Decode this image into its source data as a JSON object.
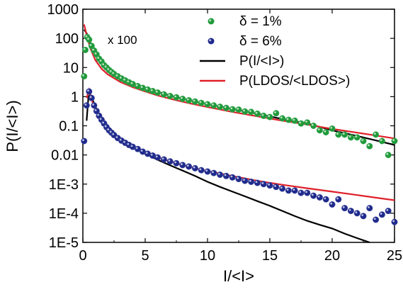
{
  "chart_data": {
    "type": "scatter",
    "xlabel": "I/<I>",
    "ylabel": "P(I/<I>)",
    "xlim": [
      0,
      25
    ],
    "ylim": [
      1e-05,
      1000
    ],
    "yscale": "log",
    "xticks": [
      0,
      5,
      10,
      15,
      20,
      25
    ],
    "xtick_labels": [
      "0",
      "5",
      "10",
      "15",
      "20",
      "25"
    ],
    "yticks": [
      1000,
      100,
      10,
      1,
      0.1,
      0.01,
      0.001,
      0.0001,
      1e-05
    ],
    "ytick_labels": [
      "1000",
      "100",
      "10",
      "1",
      "0.1",
      "0.01",
      "1E-3",
      "1E-4",
      "1E-5"
    ],
    "annotation": "x 100",
    "legend": {
      "placement": "top-right",
      "entries": [
        {
          "label": "δ = 1%",
          "marker": "circle",
          "color": "#1f9a3a"
        },
        {
          "label": "δ = 6%",
          "marker": "circle",
          "color": "#1f2a8c"
        },
        {
          "label": "P(I/<I>)",
          "marker": "line",
          "color": "#000000"
        },
        {
          "label": "P(LDOS/<LDOS>)",
          "marker": "line",
          "color": "#e0202a"
        }
      ]
    },
    "series": [
      {
        "name": "δ = 1%",
        "kind": "scatter",
        "color": "#1f9a3a",
        "points": [
          [
            0.1,
            5
          ],
          [
            0.2,
            40
          ],
          [
            0.35,
            110
          ],
          [
            0.5,
            90
          ],
          [
            0.7,
            55
          ],
          [
            0.9,
            38
          ],
          [
            1.1,
            28
          ],
          [
            1.3,
            20
          ],
          [
            1.5,
            16
          ],
          [
            1.7,
            12
          ],
          [
            1.9,
            10
          ],
          [
            2.1,
            8.2
          ],
          [
            2.3,
            7
          ],
          [
            2.5,
            6
          ],
          [
            2.8,
            5
          ],
          [
            3.1,
            4.2
          ],
          [
            3.4,
            3.6
          ],
          [
            3.7,
            3.1
          ],
          [
            4.0,
            2.7
          ],
          [
            4.4,
            2.3
          ],
          [
            4.8,
            2.0
          ],
          [
            5.2,
            1.75
          ],
          [
            5.6,
            1.55
          ],
          [
            6.0,
            1.38
          ],
          [
            6.5,
            1.2
          ],
          [
            7.0,
            1.05
          ],
          [
            7.5,
            0.95
          ],
          [
            8.0,
            0.84
          ],
          [
            8.5,
            0.75
          ],
          [
            9.0,
            0.68
          ],
          [
            9.5,
            0.61
          ],
          [
            10.0,
            0.55
          ],
          [
            10.5,
            0.5
          ],
          [
            11.0,
            0.45
          ],
          [
            11.5,
            0.41
          ],
          [
            12.0,
            0.37
          ],
          [
            12.5,
            0.36
          ],
          [
            13.0,
            0.31
          ],
          [
            13.5,
            0.3
          ],
          [
            14.0,
            0.26
          ],
          [
            14.5,
            0.22
          ],
          [
            15.0,
            0.2
          ],
          [
            15.5,
            0.27
          ],
          [
            16.0,
            0.18
          ],
          [
            16.5,
            0.16
          ],
          [
            17.0,
            0.15
          ],
          [
            17.5,
            0.12
          ],
          [
            18.0,
            0.13
          ],
          [
            18.5,
            0.1
          ],
          [
            19.0,
            0.07
          ],
          [
            19.5,
            0.06
          ],
          [
            20.0,
            0.08
          ],
          [
            20.5,
            0.05
          ],
          [
            21.0,
            0.05
          ],
          [
            21.5,
            0.04
          ],
          [
            22.0,
            0.04
          ],
          [
            22.5,
            0.03
          ],
          [
            23.0,
            0.02
          ],
          [
            23.5,
            0.05
          ],
          [
            24.0,
            0.03
          ],
          [
            24.5,
            0.01
          ],
          [
            25.0,
            0.03
          ]
        ]
      },
      {
        "name": "δ = 6%",
        "kind": "scatter",
        "color": "#1f2a8c",
        "points": [
          [
            0.1,
            0.03
          ],
          [
            0.3,
            0.5
          ],
          [
            0.5,
            1.5
          ],
          [
            0.7,
            0.9
          ],
          [
            0.9,
            0.5
          ],
          [
            1.1,
            0.32
          ],
          [
            1.3,
            0.22
          ],
          [
            1.5,
            0.16
          ],
          [
            1.7,
            0.12
          ],
          [
            1.9,
            0.09
          ],
          [
            2.1,
            0.07
          ],
          [
            2.3,
            0.058
          ],
          [
            2.5,
            0.048
          ],
          [
            2.8,
            0.038
          ],
          [
            3.1,
            0.031
          ],
          [
            3.4,
            0.026
          ],
          [
            3.7,
            0.022
          ],
          [
            4.0,
            0.019
          ],
          [
            4.4,
            0.016
          ],
          [
            4.8,
            0.013
          ],
          [
            5.2,
            0.011
          ],
          [
            5.6,
            0.0095
          ],
          [
            6.0,
            0.0082
          ],
          [
            6.5,
            0.007
          ],
          [
            7.0,
            0.006
          ],
          [
            7.5,
            0.0052
          ],
          [
            8.0,
            0.0045
          ],
          [
            8.5,
            0.004
          ],
          [
            9.0,
            0.0035
          ],
          [
            9.5,
            0.003
          ],
          [
            10.0,
            0.0027
          ],
          [
            10.5,
            0.0024
          ],
          [
            11.0,
            0.0021
          ],
          [
            11.5,
            0.0019
          ],
          [
            12.0,
            0.0017
          ],
          [
            12.5,
            0.0015
          ],
          [
            13.0,
            0.0013
          ],
          [
            13.5,
            0.0012
          ],
          [
            14.0,
            0.0011
          ],
          [
            14.5,
            0.001
          ],
          [
            15.0,
            0.0009
          ],
          [
            15.5,
            0.0008
          ],
          [
            16.0,
            0.0007
          ],
          [
            16.5,
            0.0006
          ],
          [
            17.0,
            0.0006
          ],
          [
            17.5,
            0.0005
          ],
          [
            18.0,
            0.0005
          ],
          [
            18.5,
            0.0004
          ],
          [
            19.0,
            0.00035
          ],
          [
            19.5,
            0.0003
          ],
          [
            20.0,
            0.0002
          ],
          [
            20.5,
            0.0003
          ],
          [
            21.0,
            0.00015
          ],
          [
            21.5,
            0.00012
          ],
          [
            22.0,
            0.0001
          ],
          [
            22.5,
            8e-05
          ],
          [
            23.0,
            0.00015
          ],
          [
            23.5,
            6e-05
          ],
          [
            24.0,
            9e-05
          ],
          [
            24.5,
            0.00012
          ],
          [
            25.0,
            5e-05
          ]
        ]
      },
      {
        "name": "P(I/<I>)",
        "kind": "line",
        "color": "#000000",
        "points": [
          [
            0.1,
            200
          ],
          [
            0.3,
            150
          ],
          [
            0.6,
            70
          ],
          [
            1.0,
            32
          ],
          [
            1.5,
            16
          ],
          [
            2,
            9.5
          ],
          [
            3,
            4.8
          ],
          [
            4,
            2.9
          ],
          [
            5,
            2.0
          ],
          [
            6,
            1.45
          ],
          [
            7,
            1.1
          ],
          [
            8,
            0.85
          ],
          [
            9,
            0.68
          ],
          [
            10,
            0.55
          ],
          [
            12,
            0.38
          ],
          [
            14,
            0.26
          ],
          [
            16,
            0.17
          ],
          [
            18,
            0.12
          ],
          [
            20,
            0.07
          ],
          [
            22,
            0.045
          ],
          [
            24,
            0.028
          ],
          [
            25,
            0.022
          ]
        ]
      },
      {
        "name": "P(LDOS/<LDOS>)",
        "kind": "line",
        "color": "#e0202a",
        "points": [
          [
            0.1,
            300
          ],
          [
            0.3,
            130
          ],
          [
            0.6,
            45
          ],
          [
            1.0,
            18
          ],
          [
            1.5,
            9
          ],
          [
            2,
            5.8
          ],
          [
            3,
            3.2
          ],
          [
            4,
            2.1
          ],
          [
            5,
            1.5
          ],
          [
            6,
            1.1
          ],
          [
            7,
            0.85
          ],
          [
            8,
            0.67
          ],
          [
            9,
            0.54
          ],
          [
            10,
            0.44
          ],
          [
            12,
            0.3
          ],
          [
            14,
            0.21
          ],
          [
            16,
            0.15
          ],
          [
            18,
            0.11
          ],
          [
            20,
            0.078
          ],
          [
            22,
            0.058
          ],
          [
            24,
            0.043
          ],
          [
            25,
            0.037
          ]
        ]
      },
      {
        "name": "P(I/<I>) δ = 6%",
        "kind": "line",
        "color": "#000000",
        "points": [
          [
            0.3,
            0.15
          ],
          [
            0.45,
            1.0
          ],
          [
            0.6,
            1.2
          ],
          [
            0.9,
            0.6
          ],
          [
            1.2,
            0.3
          ],
          [
            1.6,
            0.15
          ],
          [
            2,
            0.085
          ],
          [
            3,
            0.035
          ],
          [
            4,
            0.019
          ],
          [
            5,
            0.011
          ],
          [
            6,
            0.0068
          ],
          [
            7,
            0.0044
          ],
          [
            8,
            0.0029
          ],
          [
            9,
            0.0019
          ],
          [
            10,
            0.0012
          ],
          [
            11,
            0.0008
          ],
          [
            12,
            0.00055
          ],
          [
            13,
            0.00038
          ],
          [
            14,
            0.00026
          ],
          [
            15,
            0.00018
          ],
          [
            16,
            0.00012
          ],
          [
            17,
            8e-05
          ],
          [
            18,
            5.5e-05
          ],
          [
            19,
            4e-05
          ],
          [
            20,
            3e-05
          ],
          [
            21,
            2e-05
          ],
          [
            22,
            1.4e-05
          ],
          [
            23,
            1e-05
          ]
        ]
      },
      {
        "name": "P(LDOS/<LDOS>) δ = 6%",
        "kind": "line",
        "color": "#e0202a",
        "points": [
          [
            0.3,
            0.9
          ],
          [
            0.5,
            1.7
          ],
          [
            0.7,
            0.8
          ],
          [
            1.0,
            0.35
          ],
          [
            1.5,
            0.15
          ],
          [
            2,
            0.08
          ],
          [
            3,
            0.035
          ],
          [
            4,
            0.019
          ],
          [
            5,
            0.012
          ],
          [
            6,
            0.0083
          ],
          [
            7,
            0.006
          ],
          [
            8,
            0.0045
          ],
          [
            9,
            0.0035
          ],
          [
            10,
            0.0028
          ],
          [
            12,
            0.0019
          ],
          [
            14,
            0.0013
          ],
          [
            16,
            0.00095
          ],
          [
            18,
            0.00072
          ],
          [
            20,
            0.00055
          ],
          [
            22,
            0.00042
          ],
          [
            24,
            0.00032
          ],
          [
            25,
            0.00028
          ]
        ]
      }
    ]
  }
}
